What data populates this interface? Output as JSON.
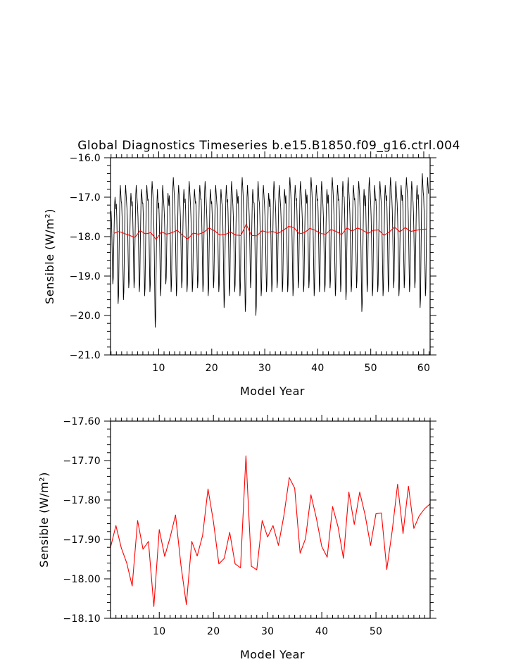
{
  "title": "Global Diagnostics Timeseries b.e15.B1850.f09_g16.ctrl.004",
  "colors": {
    "monthly": "#000000",
    "annual": "#ff0000",
    "frame": "#000000"
  },
  "chart_data": [
    {
      "type": "line",
      "title": "Global Diagnostics Timeseries b.e15.B1850.f09_g16.ctrl.004",
      "xlabel": "Model Year",
      "ylabel": "Sensible (W/m²)",
      "xlim": [
        0.9,
        61.2
      ],
      "ylim": [
        -21.0,
        -16.0
      ],
      "xticks": [
        10,
        20,
        30,
        40,
        50,
        60
      ],
      "yticks": [
        -16.0,
        -17.0,
        -18.0,
        -19.0,
        -20.0,
        -21.0
      ],
      "ytick_labels": [
        "−16.0",
        "−17.0",
        "−18.0",
        "−19.0",
        "−20.0",
        "−21.0"
      ],
      "grid": false,
      "series": [
        {
          "type": "monthly-cycle",
          "color": "#000000",
          "x_start": 1.0,
          "step": 0.0833,
          "cycle": [
            -17.35,
            -17.6,
            -18.05,
            -18.65,
            -19.2,
            -19.05,
            -18.35,
            -17.75,
            -17.2,
            -17.0,
            -17.15,
            -17.3
          ],
          "trough_by_year": [
            -19.2,
            -19.7,
            -19.6,
            -19.3,
            -19.3,
            -19.4,
            -19.5,
            -19.4,
            -20.3,
            -19.5,
            -19.2,
            -19.4,
            -19.5,
            -19.3,
            -19.4,
            -19.4,
            -19.3,
            -19.4,
            -19.5,
            -19.3,
            -19.4,
            -19.8,
            -19.5,
            -19.4,
            -19.5,
            -19.9,
            -19.3,
            -20.0,
            -19.5,
            -19.4,
            -19.4,
            -19.3,
            -19.4,
            -19.4,
            -19.5,
            -19.3,
            -19.4,
            -19.3,
            -19.5,
            -19.4,
            -19.4,
            -19.3,
            -19.5,
            -19.4,
            -19.6,
            -19.4,
            -19.3,
            -19.9,
            -19.4,
            -19.5,
            -19.4,
            -19.5,
            -19.4,
            -19.3,
            -19.5,
            -19.3,
            -19.4,
            -19.3,
            -19.8,
            -19.5
          ],
          "peak_by_year": [
            -17.0,
            -16.7,
            -16.7,
            -16.9,
            -16.7,
            -16.8,
            -16.7,
            -16.6,
            -16.8,
            -16.7,
            -16.9,
            -16.5,
            -16.7,
            -16.8,
            -16.6,
            -16.8,
            -16.7,
            -16.6,
            -16.8,
            -16.7,
            -16.8,
            -16.7,
            -16.6,
            -16.8,
            -16.5,
            -16.7,
            -16.8,
            -16.6,
            -16.7,
            -16.9,
            -16.6,
            -16.7,
            -16.8,
            -16.5,
            -16.7,
            -16.6,
            -16.8,
            -16.5,
            -16.7,
            -16.6,
            -16.8,
            -16.5,
            -16.7,
            -16.6,
            -16.5,
            -16.7,
            -16.6,
            -16.8,
            -16.5,
            -16.7,
            -16.6,
            -16.7,
            -16.5,
            -16.6,
            -16.7,
            -16.5,
            -16.6,
            -16.7,
            -16.4,
            -16.5
          ]
        },
        {
          "type": "annual-mean",
          "color": "#ff0000",
          "x": [
            1.5,
            2.5,
            3.5,
            4.5,
            5.5,
            6.5,
            7.5,
            8.5,
            9.5,
            10.5,
            11.5,
            12.5,
            13.5,
            14.5,
            15.5,
            16.5,
            17.5,
            18.5,
            19.5,
            20.5,
            21.5,
            22.5,
            23.5,
            24.5,
            25.5,
            26.5,
            27.5,
            28.5,
            29.5,
            30.5,
            31.5,
            32.5,
            33.5,
            34.5,
            35.5,
            36.5,
            37.5,
            38.5,
            39.5,
            40.5,
            41.5,
            42.5,
            43.5,
            44.5,
            45.5,
            46.5,
            47.5,
            48.5,
            49.5,
            50.5,
            51.5,
            52.5,
            53.5,
            54.5,
            55.5,
            56.5,
            57.5,
            58.5,
            59.5,
            60.5
          ],
          "y": [
            -17.92,
            -17.87,
            -17.92,
            -17.97,
            -18.02,
            -17.85,
            -17.93,
            -17.9,
            -18.07,
            -17.88,
            -17.94,
            -17.9,
            -17.84,
            -17.97,
            -18.06,
            -17.91,
            -17.94,
            -17.89,
            -17.78,
            -17.85,
            -17.96,
            -17.95,
            -17.88,
            -17.96,
            -17.97,
            -17.69,
            -17.97,
            -17.98,
            -17.85,
            -17.89,
            -17.87,
            -17.92,
            -17.84,
            -17.74,
            -17.77,
            -17.93,
            -17.9,
            -17.79,
            -17.84,
            -17.92,
            -17.94,
            -17.82,
            -17.87,
            -17.95,
            -17.78,
            -17.86,
            -17.78,
            -17.84,
            -17.92,
            -17.84,
            -17.83,
            -17.97,
            -17.88,
            -17.76,
            -17.88,
            -17.77,
            -17.87,
            -17.84,
            -17.82,
            -17.81
          ]
        }
      ]
    },
    {
      "type": "line",
      "xlabel": "Model Year",
      "ylabel": "Sensible (W/m²)",
      "xlim": [
        1.0,
        60.0
      ],
      "ylim": [
        -18.1,
        -17.6
      ],
      "xticks": [
        10,
        20,
        30,
        40,
        50
      ],
      "yticks": [
        -17.6,
        -17.7,
        -17.8,
        -17.9,
        -18.0,
        -18.1
      ],
      "ytick_labels": [
        "−17.60",
        "−17.70",
        "−17.80",
        "−17.90",
        "−18.00",
        "−18.10"
      ],
      "grid": false,
      "series": [
        {
          "type": "annual-mean",
          "color": "#ff0000",
          "x": [
            1.0,
            2.0,
            3.0,
            4.0,
            5.0,
            6.0,
            7.0,
            8.0,
            9.0,
            10.0,
            11.0,
            12.0,
            13.0,
            14.0,
            15.0,
            16.0,
            17.0,
            18.0,
            19.0,
            20.0,
            21.0,
            22.0,
            23.0,
            24.0,
            25.0,
            26.0,
            27.0,
            28.0,
            29.0,
            30.0,
            31.0,
            32.0,
            33.0,
            34.0,
            35.0,
            36.0,
            37.0,
            38.0,
            39.0,
            40.0,
            41.0,
            42.0,
            43.0,
            44.0,
            45.0,
            46.0,
            47.0,
            48.0,
            49.0,
            50.0,
            51.0,
            52.0,
            53.0,
            54.0,
            55.0,
            56.0,
            57.0,
            58.0,
            59.0,
            60.0
          ],
          "y": [
            -17.92,
            -17.865,
            -17.922,
            -17.96,
            -18.018,
            -17.852,
            -17.925,
            -17.905,
            -18.07,
            -17.875,
            -17.943,
            -17.895,
            -17.838,
            -17.965,
            -18.065,
            -17.905,
            -17.942,
            -17.89,
            -17.772,
            -17.855,
            -17.962,
            -17.948,
            -17.882,
            -17.962,
            -17.972,
            -17.688,
            -17.968,
            -17.977,
            -17.852,
            -17.894,
            -17.865,
            -17.915,
            -17.84,
            -17.743,
            -17.77,
            -17.935,
            -17.898,
            -17.787,
            -17.846,
            -17.918,
            -17.945,
            -17.817,
            -17.868,
            -17.948,
            -17.78,
            -17.862,
            -17.78,
            -17.838,
            -17.915,
            -17.835,
            -17.833,
            -17.976,
            -17.878,
            -17.76,
            -17.885,
            -17.765,
            -17.872,
            -17.84,
            -17.822,
            -17.81
          ]
        }
      ]
    }
  ]
}
